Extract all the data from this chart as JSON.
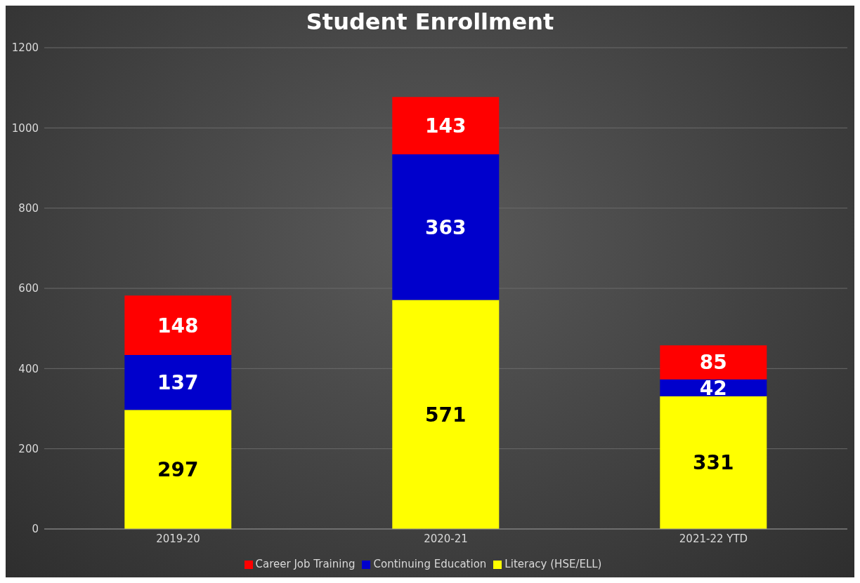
{
  "chart_data": {
    "type": "bar",
    "title": "Student Enrollment",
    "categories": [
      "2019-20",
      "2020-21",
      "2021-22 YTD"
    ],
    "series": [
      {
        "name": "Literacy (HSE/ELL)",
        "color": "#ffff00",
        "values": [
          297,
          571,
          331
        ]
      },
      {
        "name": "Continuing Education",
        "color": "#0000cc",
        "values": [
          137,
          363,
          42
        ]
      },
      {
        "name": "Career Job Training",
        "color": "#ff0000",
        "values": [
          148,
          143,
          85
        ]
      }
    ],
    "stacked": true,
    "ylim": [
      0,
      1200
    ],
    "yticks": [
      0,
      200,
      400,
      600,
      800,
      1000,
      1200
    ],
    "grid": "y",
    "legend": "bottom",
    "data_labels": true
  }
}
